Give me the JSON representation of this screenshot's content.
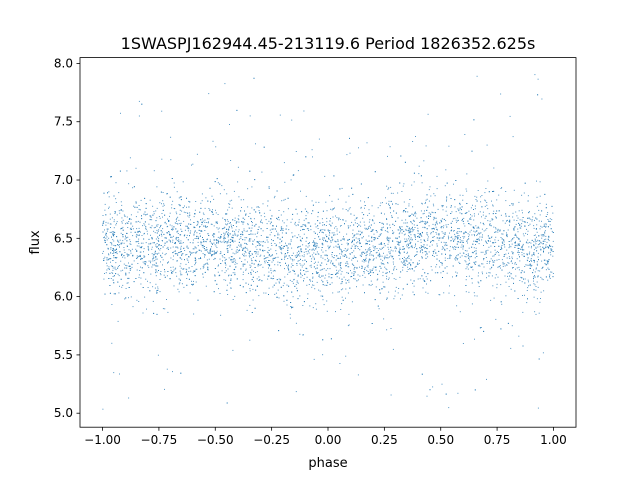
{
  "chart_data": {
    "type": "scatter",
    "title": "1SWASPJ162944.45-213119.6 Period 1826352.625s",
    "xlabel": "phase",
    "ylabel": "flux",
    "xlim": [
      -1.1,
      1.1
    ],
    "ylim": [
      4.88,
      8.05
    ],
    "xticks": [
      {
        "value": -1.0,
        "label": "−1.00"
      },
      {
        "value": -0.75,
        "label": "−0.75"
      },
      {
        "value": -0.5,
        "label": "−0.50"
      },
      {
        "value": -0.25,
        "label": "−0.25"
      },
      {
        "value": 0.0,
        "label": "0.00"
      },
      {
        "value": 0.25,
        "label": "0.25"
      },
      {
        "value": 0.5,
        "label": "0.50"
      },
      {
        "value": 0.75,
        "label": "0.75"
      },
      {
        "value": 1.0,
        "label": "1.00"
      }
    ],
    "yticks": [
      {
        "value": 5.0,
        "label": "5.0"
      },
      {
        "value": 5.5,
        "label": "5.5"
      },
      {
        "value": 6.0,
        "label": "6.0"
      },
      {
        "value": 6.5,
        "label": "6.5"
      },
      {
        "value": 7.0,
        "label": "7.0"
      },
      {
        "value": 7.5,
        "label": "7.5"
      },
      {
        "value": 8.0,
        "label": "8.0"
      }
    ],
    "grid": false,
    "legend": "none",
    "point_color": "#1f77b4",
    "series": [
      {
        "phase_range": [
          -1.0,
          1.0
        ],
        "flux_typical_center": 6.45,
        "flux_dense_band": [
          6.0,
          6.85
        ],
        "flux_full_range": [
          5.02,
          7.92
        ],
        "x": [
          -1.0,
          -0.98,
          -0.95,
          -0.9,
          -0.85,
          -0.8,
          -0.75,
          -0.7,
          -0.65,
          -0.6,
          -0.55,
          -0.5,
          -0.45,
          -0.4,
          -0.35,
          -0.3,
          -0.25,
          -0.2,
          -0.15,
          -0.1,
          -0.05,
          0.0,
          0.05,
          0.1,
          0.15,
          0.2,
          0.25,
          0.3,
          0.35,
          0.4,
          0.45,
          0.5,
          0.55,
          0.6,
          0.65,
          0.7,
          0.75,
          0.8,
          0.85,
          0.9,
          0.95,
          0.98,
          1.0
        ],
        "y": [
          6.45,
          6.5,
          6.42,
          6.38,
          6.48,
          6.4,
          6.46,
          6.52,
          6.48,
          6.43,
          6.5,
          6.46,
          6.47,
          6.44,
          6.45,
          6.42,
          6.4,
          6.38,
          6.35,
          6.36,
          6.38,
          6.4,
          6.36,
          6.38,
          6.42,
          6.4,
          6.44,
          6.48,
          6.5,
          6.5,
          6.52,
          6.48,
          6.5,
          6.48,
          6.46,
          6.5,
          6.45,
          6.44,
          6.42,
          6.4,
          6.44,
          6.42,
          6.45
        ]
      }
    ]
  }
}
